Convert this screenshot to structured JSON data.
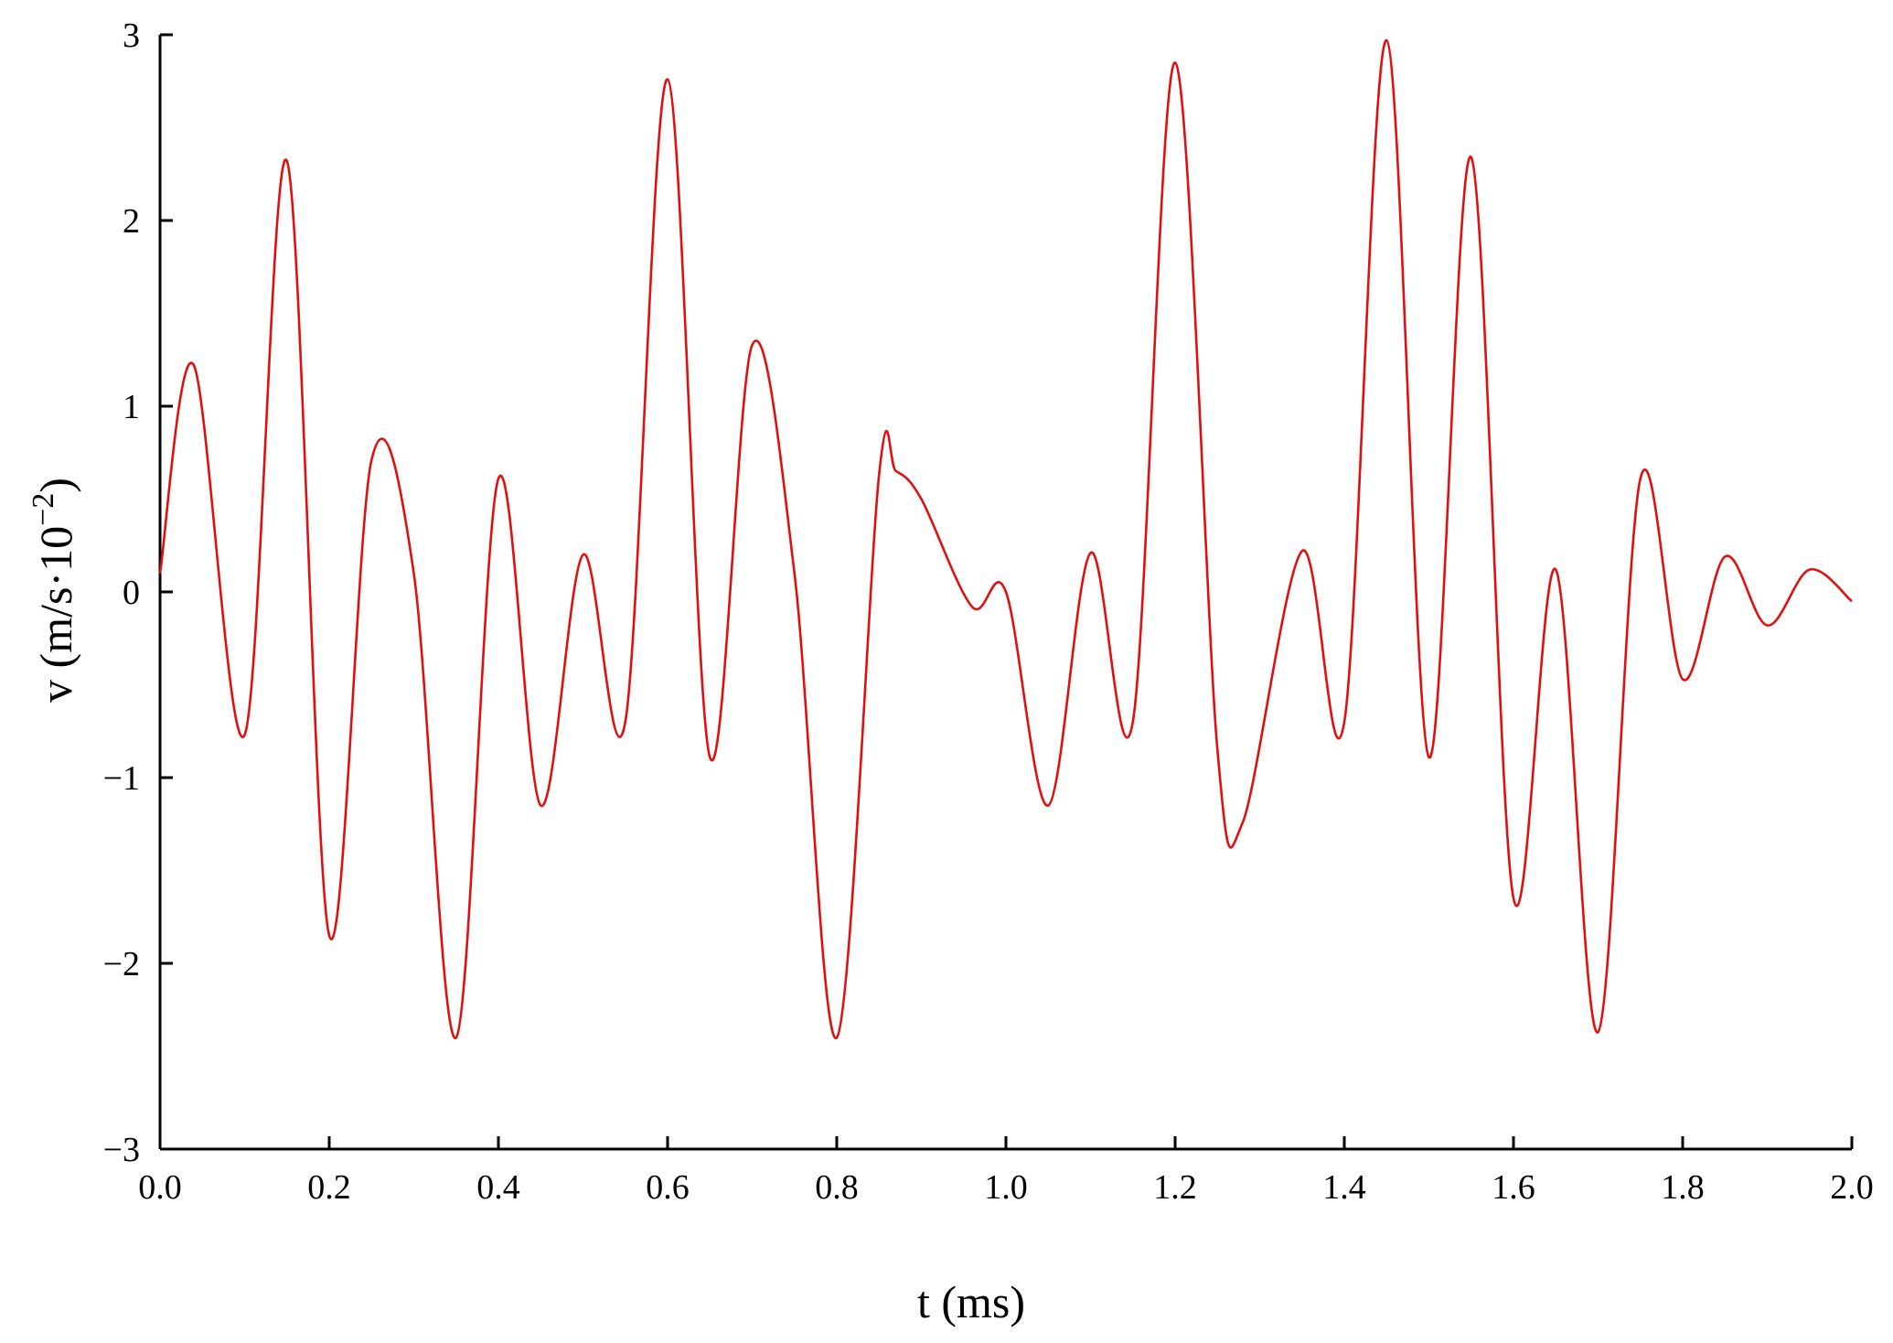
{
  "chart_data": {
    "type": "line",
    "xlabel": "t (ms)",
    "ylabel": "v (m/s·10−2)",
    "ylabel_parts": {
      "base": "v (m/s·10",
      "exponent": "−2",
      "close": ")"
    },
    "xlim": [
      0.0,
      2.0
    ],
    "ylim": [
      -3,
      3
    ],
    "grid": false,
    "legend": "none",
    "x_tick_labels": [
      "0.0",
      "0.2",
      "0.4",
      "0.6",
      "0.8",
      "1.0",
      "1.2",
      "1.4",
      "1.6",
      "1.8",
      "2.0"
    ],
    "x_ticks": [
      0.0,
      0.2,
      0.4,
      0.6,
      0.8,
      1.0,
      1.2,
      1.4,
      1.6,
      1.8,
      2.0
    ],
    "y_tick_labels": [
      "3",
      "2",
      "1",
      "0",
      "−1",
      "−2",
      "−3"
    ],
    "y_ticks": [
      3,
      2,
      1,
      0,
      -1,
      -2,
      -3
    ],
    "series": [
      {
        "color": "#e01010",
        "x": [
          0.0,
          0.04,
          0.1,
          0.15,
          0.2,
          0.25,
          0.3,
          0.35,
          0.4,
          0.45,
          0.5,
          0.55,
          0.6,
          0.65,
          0.7,
          0.75,
          0.8,
          0.85,
          0.87,
          0.9,
          0.96,
          1.0,
          1.05,
          1.1,
          1.15,
          1.2,
          1.25,
          1.28,
          1.35,
          1.4,
          1.45,
          1.5,
          1.55,
          1.6,
          1.65,
          1.7,
          1.75,
          1.8,
          1.85,
          1.9,
          1.95,
          2.0
        ],
        "values": [
          0.1,
          1.22,
          -0.77,
          2.32,
          -1.85,
          0.71,
          0.1,
          -2.4,
          0.61,
          -1.15,
          0.2,
          -0.7,
          2.76,
          -0.89,
          1.33,
          0.1,
          -2.4,
          0.63,
          0.65,
          0.5,
          -0.08,
          0.0,
          -1.15,
          0.21,
          -0.7,
          2.85,
          -0.85,
          -1.24,
          0.22,
          -0.7,
          2.97,
          -0.89,
          2.34,
          -1.65,
          0.12,
          -2.37,
          0.61,
          -0.47,
          0.19,
          -0.18,
          0.12,
          -0.05
        ]
      }
    ]
  }
}
